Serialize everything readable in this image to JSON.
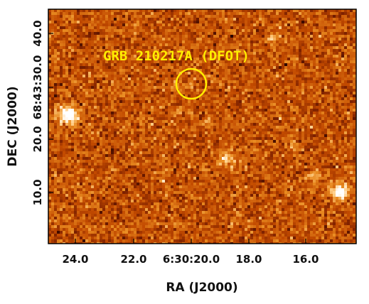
{
  "image": {
    "title": "GRB 210217A (DFOT)",
    "xlabel": "RA (J2000)",
    "ylabel": "DEC (J2000)",
    "x_ticks": [
      "24.0",
      "22.0",
      "6:30:20.0",
      "18.0",
      "16.0"
    ],
    "y_ticks": [
      "40.0",
      "68:43:30.0",
      "20.0",
      "10.0"
    ],
    "marker_color": "#ffee00",
    "colormap": [
      "#2a0400",
      "#7a1f00",
      "#c24a00",
      "#e88a20",
      "#ffd08a",
      "#ffffff"
    ]
  }
}
